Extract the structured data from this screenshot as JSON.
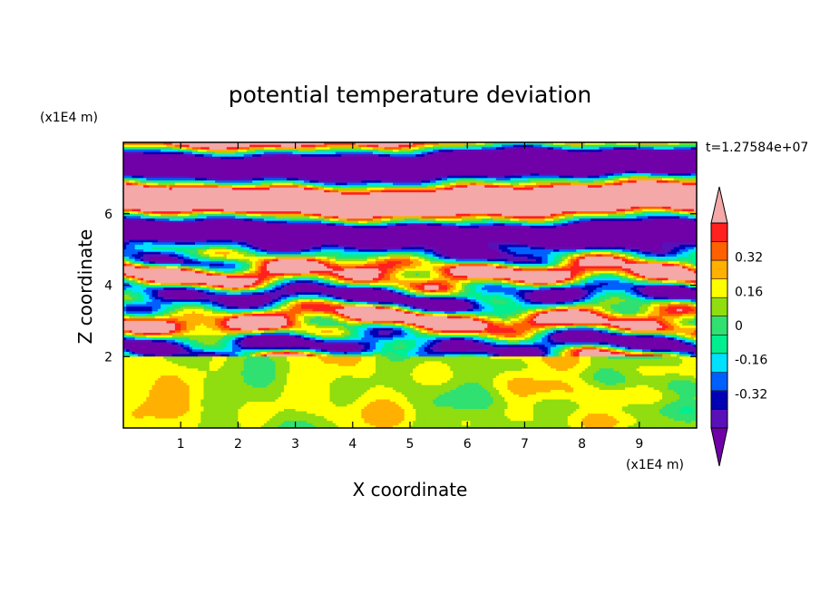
{
  "chart_data": {
    "type": "heatmap",
    "title": "potential temperature deviation",
    "xlabel": "X coordinate",
    "ylabel": "Z coordinate",
    "x_unit": "(x1E4 m)",
    "y_unit": "(x1E4 m)",
    "time_label": "t=1.27584e+07",
    "xlim": [
      0,
      10
    ],
    "ylim": [
      0,
      8
    ],
    "x_ticks": [
      "1",
      "2",
      "3",
      "4",
      "5",
      "6",
      "7",
      "8",
      "9"
    ],
    "y_ticks": [
      "2",
      "4",
      "6"
    ],
    "colorbar": {
      "levels": [
        -0.48,
        -0.4,
        -0.32,
        -0.24,
        -0.16,
        -0.08,
        0,
        0.08,
        0.16,
        0.24,
        0.32,
        0.4,
        0.48
      ],
      "colors": [
        "#7000a8",
        "#5a10b8",
        "#0000b4",
        "#0060ff",
        "#00e0ff",
        "#00ee90",
        "#30e070",
        "#90dd10",
        "#ffff00",
        "#ffb000",
        "#ff6000",
        "#ff2020",
        "#f4a8a8"
      ],
      "tick_labels": [
        "0.32",
        "0.16",
        "0",
        "-0.16",
        "-0.32"
      ],
      "extend": "both"
    },
    "regions": [
      {
        "z_range": [
          0,
          2
        ],
        "dominant": "weak deviations near 0 to 0.08 with small 0.16 patches"
      },
      {
        "z_range": [
          2,
          5
        ],
        "dominant": "mixed layered deviations spanning full range"
      },
      {
        "z_range": [
          5,
          8
        ],
        "dominant": "alternating horizontal bands of about -0.48 and +0.48"
      }
    ]
  }
}
